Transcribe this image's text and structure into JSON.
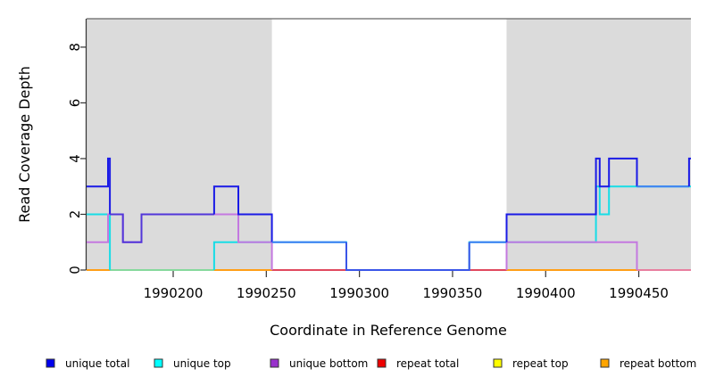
{
  "chart_data": {
    "type": "line",
    "subtype": "step-coverage",
    "xlabel": "Coordinate in Reference Genome",
    "ylabel": "Read Coverage Depth",
    "xlim": [
      1990153.5,
      1990478
    ],
    "ylim": [
      0,
      9.02
    ],
    "x_ticks": [
      1990200,
      1990250,
      1990300,
      1990350,
      1990400,
      1990450
    ],
    "y_ticks": [
      0,
      2,
      4,
      6,
      8
    ],
    "grid": "off",
    "top_border_value": 9.02,
    "shaded_regions": [
      {
        "from": 1990153.5,
        "to": 1990253,
        "color": "#dbdbdb"
      },
      {
        "from": 1990379,
        "to": 1990478,
        "color": "#dbdbdb"
      }
    ],
    "legend_position": "bottom",
    "series": [
      {
        "name": "unique total",
        "color": "#0000EE",
        "segments": [
          [
            1990153.5,
            1990165,
            3
          ],
          [
            1990165,
            1990166,
            4
          ],
          [
            1990166,
            1990173,
            2
          ],
          [
            1990173,
            1990183,
            1
          ],
          [
            1990183,
            1990222,
            2
          ],
          [
            1990222,
            1990235,
            3
          ],
          [
            1990235,
            1990253,
            2
          ],
          [
            1990253,
            1990293,
            1
          ],
          [
            1990293,
            1990359,
            0
          ],
          [
            1990359,
            1990379,
            1
          ],
          [
            1990379,
            1990427,
            2
          ],
          [
            1990427,
            1990429,
            4
          ],
          [
            1990429,
            1990434,
            3
          ],
          [
            1990434,
            1990449,
            4
          ],
          [
            1990449,
            1990477,
            3
          ],
          [
            1990477,
            1990478,
            4
          ]
        ]
      },
      {
        "name": "unique top",
        "color": "#00FFFF",
        "segments": [
          [
            1990153.5,
            1990166,
            2
          ],
          [
            1990166,
            1990222,
            0
          ],
          [
            1990222,
            1990293,
            1
          ],
          [
            1990293,
            1990359,
            0
          ],
          [
            1990359,
            1990427,
            1
          ],
          [
            1990427,
            1990429,
            3
          ],
          [
            1990429,
            1990434,
            2
          ],
          [
            1990434,
            1990478,
            3
          ]
        ]
      },
      {
        "name": "unique bottom",
        "color": "#9932CC",
        "segments": [
          [
            1990153.5,
            1990165,
            1
          ],
          [
            1990165,
            1990173,
            2
          ],
          [
            1990173,
            1990183,
            1
          ],
          [
            1990183,
            1990235,
            2
          ],
          [
            1990235,
            1990253,
            1
          ],
          [
            1990253,
            1990379,
            0
          ],
          [
            1990379,
            1990449,
            1
          ],
          [
            1990449,
            1990477,
            0
          ],
          [
            1990477,
            1990478,
            1
          ]
        ]
      },
      {
        "name": "repeat total",
        "color": "#EE0000",
        "segments": [
          [
            1990153.5,
            1990478,
            0
          ]
        ]
      },
      {
        "name": "repeat top",
        "color": "#FFFF00",
        "segments": [
          [
            1990153.5,
            1990222,
            0
          ]
        ]
      },
      {
        "name": "repeat bottom",
        "color": "#FFA500",
        "segments": [
          [
            1990153.5,
            1990166,
            0
          ],
          [
            1990222,
            1990253,
            0
          ],
          [
            1990379,
            1990449,
            0
          ]
        ]
      }
    ]
  },
  "legend": {
    "entries": [
      {
        "label": "unique total",
        "color": "#0000EE"
      },
      {
        "label": "unique top",
        "color": "#00FFFF"
      },
      {
        "label": "unique bottom",
        "color": "#9932CC"
      },
      {
        "label": "repeat total",
        "color": "#EE0000"
      },
      {
        "label": "repeat top",
        "color": "#FFFF00"
      },
      {
        "label": "repeat bottom",
        "color": "#FFA500"
      }
    ]
  },
  "render_strokes": [
    {
      "color": "#E0485E",
      "pts": [
        [
          1990153.5,
          0
        ],
        [
          1990478,
          0
        ]
      ]
    },
    {
      "color": "#E87FA0",
      "pts": [
        [
          1990449,
          0
        ],
        [
          1990478,
          0
        ]
      ]
    },
    {
      "color": "#FF9E16",
      "pts": [
        [
          1990153.5,
          0
        ],
        [
          1990166,
          0
        ]
      ]
    },
    {
      "color": "#FF9E16",
      "pts": [
        [
          1990222,
          0
        ],
        [
          1990253,
          0
        ]
      ]
    },
    {
      "color": "#FF9E16",
      "pts": [
        [
          1990379,
          0
        ],
        [
          1990449,
          0
        ]
      ]
    },
    {
      "color": "#86D99C",
      "pts": [
        [
          1990166,
          0
        ],
        [
          1990222,
          0
        ]
      ]
    },
    {
      "color": "#17DDE6",
      "pts": [
        [
          1990153.5,
          2
        ],
        [
          1990166,
          2
        ],
        [
          1990166,
          0
        ]
      ]
    },
    {
      "color": "#17DDE6",
      "pts": [
        [
          1990222,
          0
        ],
        [
          1990222,
          1
        ],
        [
          1990293,
          1
        ],
        [
          1990293,
          0
        ]
      ]
    },
    {
      "color": "#17DDE6",
      "pts": [
        [
          1990359,
          0
        ],
        [
          1990359,
          1
        ],
        [
          1990427,
          1
        ],
        [
          1990427,
          3
        ],
        [
          1990429,
          3
        ],
        [
          1990429,
          2
        ],
        [
          1990434,
          2
        ],
        [
          1990434,
          3
        ],
        [
          1990478,
          3
        ]
      ]
    },
    {
      "color": "#C479E0",
      "pts": [
        [
          1990153.5,
          1
        ],
        [
          1990165,
          1
        ],
        [
          1990165,
          2
        ],
        [
          1990173,
          2
        ],
        [
          1990173,
          1
        ],
        [
          1990183,
          1
        ],
        [
          1990183,
          2
        ],
        [
          1990235,
          2
        ],
        [
          1990235,
          1
        ],
        [
          1990253,
          1
        ],
        [
          1990253,
          0
        ]
      ]
    },
    {
      "color": "#C479E0",
      "pts": [
        [
          1990379,
          0
        ],
        [
          1990379,
          1
        ],
        [
          1990449,
          1
        ],
        [
          1990449,
          0
        ]
      ]
    },
    {
      "color": "#1A1AE6",
      "pts": [
        [
          1990153.5,
          3
        ],
        [
          1990165,
          3
        ],
        [
          1990165,
          4
        ],
        [
          1990166,
          4
        ],
        [
          1990166,
          2
        ]
      ]
    },
    {
      "color": "#5236D9",
      "pts": [
        [
          1990166,
          2
        ],
        [
          1990173,
          2
        ],
        [
          1990173,
          1
        ],
        [
          1990183,
          1
        ],
        [
          1990183,
          2
        ],
        [
          1990222,
          2
        ]
      ]
    },
    {
      "color": "#1A1AE6",
      "pts": [
        [
          1990222,
          2
        ],
        [
          1990222,
          3
        ],
        [
          1990235,
          3
        ],
        [
          1990235,
          2
        ],
        [
          1990253,
          2
        ],
        [
          1990253,
          1
        ]
      ]
    },
    {
      "color": "#3F7FF2",
      "pts": [
        [
          1990253,
          1
        ],
        [
          1990293,
          1
        ]
      ]
    },
    {
      "color": "#3A55E8",
      "pts": [
        [
          1990293,
          1
        ],
        [
          1990293,
          0
        ],
        [
          1990359,
          0
        ],
        [
          1990359,
          1
        ]
      ]
    },
    {
      "color": "#3F7FF2",
      "pts": [
        [
          1990359,
          1
        ],
        [
          1990379,
          1
        ]
      ]
    },
    {
      "color": "#1A1AE6",
      "pts": [
        [
          1990379,
          1
        ],
        [
          1990379,
          2
        ],
        [
          1990427,
          2
        ],
        [
          1990427,
          4
        ],
        [
          1990429,
          4
        ],
        [
          1990429,
          3
        ],
        [
          1990434,
          3
        ],
        [
          1990434,
          4
        ],
        [
          1990449,
          4
        ],
        [
          1990449,
          3
        ]
      ]
    },
    {
      "color": "#3F7FF2",
      "pts": [
        [
          1990449,
          3
        ],
        [
          1990477,
          3
        ]
      ]
    },
    {
      "color": "#1A1AE6",
      "pts": [
        [
          1990477,
          3
        ],
        [
          1990477,
          4
        ],
        [
          1990478,
          4
        ]
      ]
    }
  ],
  "styles": {
    "axis_color": "#333333",
    "top_border_color": "#666666",
    "tick_label_color": "#000000",
    "shade_color": "#dbdbdb"
  }
}
